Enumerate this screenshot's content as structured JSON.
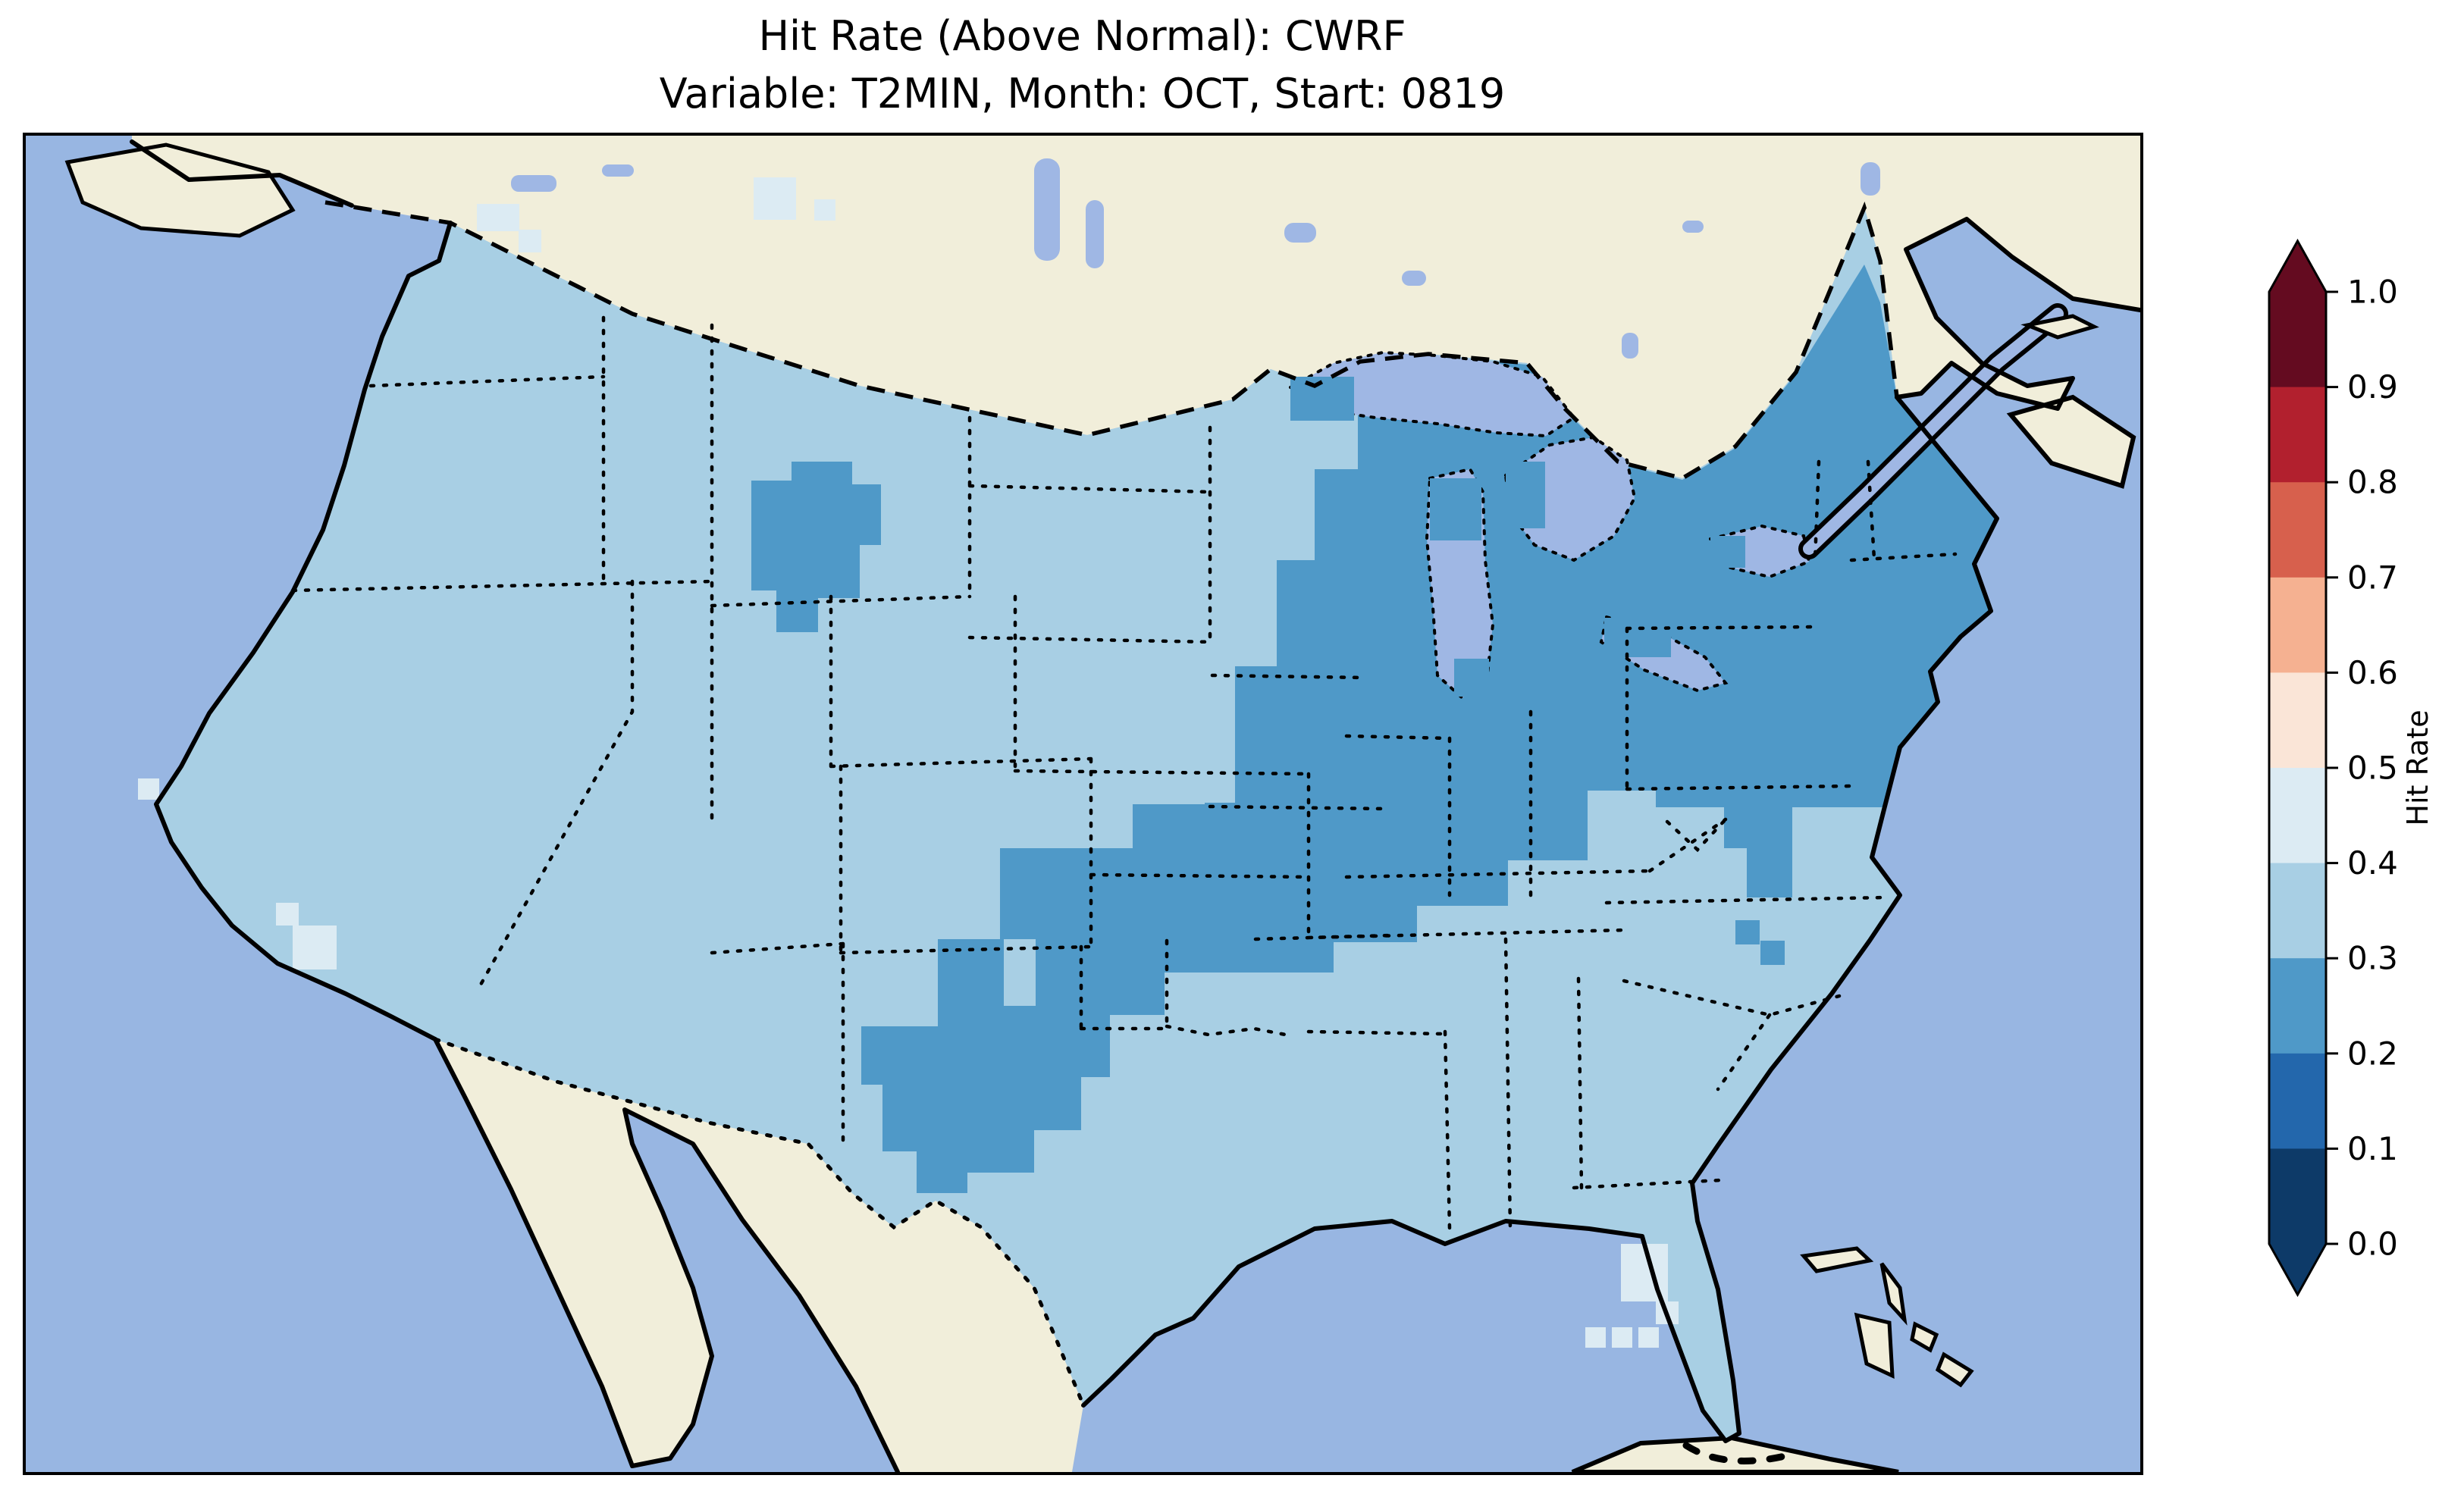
{
  "figure": {
    "title_line1": "Hit Rate (Above Normal): CWRF",
    "title_line2": "Variable: T2MIN, Month: OCT, Start: 0819"
  },
  "colorbar": {
    "label": "Hit Rate",
    "orientation": "vertical",
    "extend": "both",
    "outline_color": "#000000",
    "ticks": [
      "1.0",
      "0.9",
      "0.8",
      "0.7",
      "0.6",
      "0.5",
      "0.4",
      "0.3",
      "0.2",
      "0.1",
      "0.0"
    ],
    "segments": [
      {
        "range": "0.9–1.0",
        "color": "#640b20"
      },
      {
        "range": "0.8–0.9",
        "color": "#b2202e"
      },
      {
        "range": "0.7–0.8",
        "color": "#d7604d"
      },
      {
        "range": "0.6–0.7",
        "color": "#f5b191"
      },
      {
        "range": "0.5–0.6",
        "color": "#fae5d7"
      },
      {
        "range": "0.4–0.5",
        "color": "#dcebf3"
      },
      {
        "range": "0.3–0.4",
        "color": "#a8cfe4"
      },
      {
        "range": "0.2–0.3",
        "color": "#4f99c8"
      },
      {
        "range": "0.1–0.2",
        "color": "#2367ac"
      },
      {
        "range": "0.0–0.1",
        "color": "#0d3a68"
      }
    ],
    "arrow_over_color": "#640b20",
    "arrow_under_color": "#0d3a68"
  },
  "map": {
    "palette": {
      "ocean": "#98b6e2",
      "lake": "#9fb7e4",
      "land_foreign": "#f1eeda",
      "bin_02_03": "#4f99c8",
      "bin_03_04": "#a8cfe4",
      "bin_04_05": "#dcebf3",
      "coastline": "#000000",
      "border": "#000000"
    }
  },
  "chart_data": {
    "type": "heatmap",
    "title": "Hit Rate (Above Normal): CWRF",
    "subtitle": "Variable: T2MIN, Month: OCT, Start: 0819",
    "metric": "Hit Rate (Above Normal)",
    "model": "CWRF",
    "variable": "T2MIN",
    "month": "OCT",
    "start": "0819",
    "colorbar_label": "Hit Rate",
    "colorbar_ticks": [
      1.0,
      0.9,
      0.8,
      0.7,
      0.6,
      0.5,
      0.4,
      0.3,
      0.2,
      0.1,
      0.0
    ],
    "colorbar_range": [
      0.0,
      1.0
    ],
    "colormap": "RdBu_r (10 discrete bins, extend both)",
    "bins": [
      {
        "range": [
          0.0,
          0.1
        ],
        "color": "#0d3a68"
      },
      {
        "range": [
          0.1,
          0.2
        ],
        "color": "#2367ac"
      },
      {
        "range": [
          0.2,
          0.3
        ],
        "color": "#4f99c8"
      },
      {
        "range": [
          0.3,
          0.4
        ],
        "color": "#a8cfe4"
      },
      {
        "range": [
          0.4,
          0.5
        ],
        "color": "#dcebf3"
      },
      {
        "range": [
          0.5,
          0.6
        ],
        "color": "#fae5d7"
      },
      {
        "range": [
          0.6,
          0.7
        ],
        "color": "#f5b191"
      },
      {
        "range": [
          0.7,
          0.8
        ],
        "color": "#d7604d"
      },
      {
        "range": [
          0.8,
          0.9
        ],
        "color": "#b2202e"
      },
      {
        "range": [
          0.9,
          1.0
        ],
        "color": "#640b20"
      }
    ],
    "extent": "Contiguous United States (gridded ~30 px cells); surrounding Canada, Mexico, Cuba and Bahamas shown as unshaded land",
    "map_regions": [
      {
        "region": "Pacific Northwest, California, Great Basin, Rockies, western Plains (MT, ND, most of SD, WY, CO, NM, AZ, UT, NV, ID, most of TX, OK panhandle)",
        "hit_rate_bin": "0.3–0.4"
      },
      {
        "region": "Gulf/Southeast states (LA, MS, AL, GA, most of FL, AR, TN, KY south, WV, VA, NC, SC)",
        "hit_rate_bin": "0.3–0.4"
      },
      {
        "region": "Upper Midwest, Great Lakes, Ohio Valley, Mid-Atlantic and New England (eastern MN, WI, MI, IA, IL, IN, OH, PA, NY, NJ, MD, New England, most of Maine)",
        "hit_rate_bin": "0.2–0.3"
      },
      {
        "region": "Central Plains lobe (eastern NE, KS, western MO, central OK)",
        "hit_rate_bin": "0.2–0.3"
      },
      {
        "region": "Central South Dakota pocket",
        "hit_rate_bin": "0.2–0.3"
      },
      {
        "region": "Central Texas pocket",
        "hit_rate_bin": "0.2–0.3"
      },
      {
        "region": "Chesapeake Bay / Delmarva and coastal North Carolina cells",
        "hit_rate_bin": "0.2–0.3"
      },
      {
        "region": "Northern Maine fringe cells",
        "hit_rate_bin": "0.3–0.4"
      },
      {
        "region": "Puget Sound cells, southern California coastal cells, one northern California coast cell",
        "hit_rate_bin": "0.4–0.5"
      },
      {
        "region": "Southern Florida tip and Florida Keys cells",
        "hit_rate_bin": "0.4–0.5"
      }
    ],
    "layout": {
      "legend_position": "right vertical colorbar",
      "grid": false,
      "borders": "coastlines solid black; US–Canada border dashed; state and US–Mexico borders dotted; lake shorelines dotted"
    }
  }
}
